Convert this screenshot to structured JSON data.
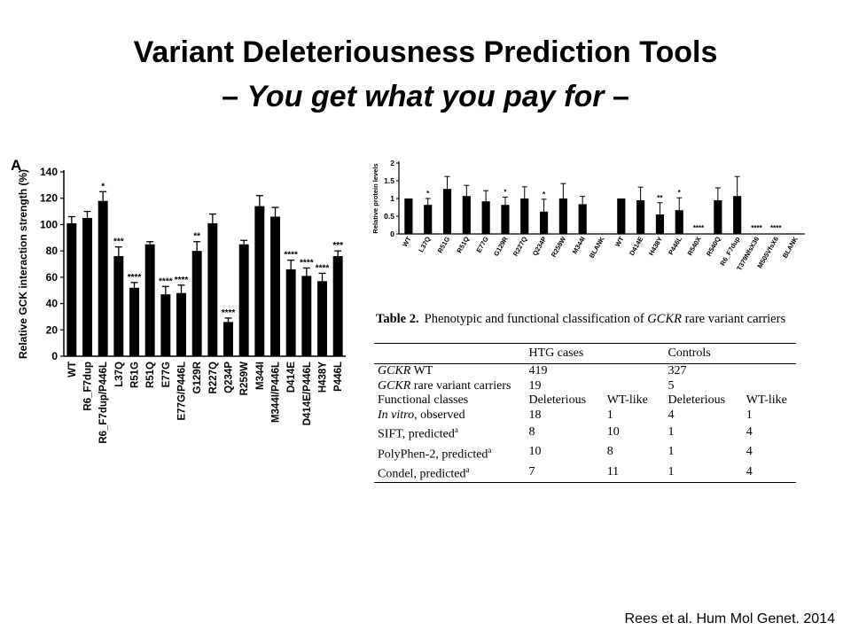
{
  "slide": {
    "title_line1": "Variant Deleteriousness Prediction Tools",
    "title_line2_prefix": "– ",
    "title_line2_italic": "You get what you pay for",
    "title_line2_suffix": " –",
    "citation": "Rees et al. Hum Mol Genet. 2014"
  },
  "chart_data": [
    {
      "type": "bar",
      "panel_label": "A",
      "ylabel": "Relative GCK  interaction strength (%)",
      "ylim": [
        0,
        140
      ],
      "yticks": [
        0,
        20,
        40,
        60,
        80,
        100,
        120,
        140
      ],
      "categories": [
        "WT",
        "R6_F7dup",
        "R6_F7dup/P446L",
        "L37Q",
        "R51G",
        "R51Q",
        "E77G",
        "E77G/P446L",
        "G129R",
        "R227Q",
        "Q234P",
        "R259W",
        "M344I",
        "M344I/P446L",
        "D414E",
        "D414E/P446L",
        "H438Y",
        "P446L"
      ],
      "values": [
        101,
        105,
        118,
        76,
        52,
        85,
        47,
        48,
        80,
        101,
        26,
        85,
        114,
        106,
        66,
        61,
        57,
        76
      ],
      "errors": [
        5,
        5,
        7,
        7,
        4,
        2,
        6,
        6,
        7,
        7,
        3,
        3,
        8,
        7,
        7,
        6,
        6,
        4
      ],
      "significance": [
        "",
        "",
        "*",
        "***",
        "****",
        "",
        "****",
        "****",
        "**",
        "",
        "****",
        "",
        "",
        "",
        "****",
        "****",
        "****",
        "***"
      ],
      "bar_color": "#000000",
      "grid": false
    },
    {
      "type": "bar",
      "ylabel": "Relative protein levels",
      "ylim": [
        0,
        2
      ],
      "yticks": [
        0,
        0.5,
        1,
        1.5,
        2
      ],
      "categories": [
        "WT",
        "L37Q",
        "R51G",
        "R51Q",
        "E77G",
        "G129R",
        "R227Q",
        "Q234P",
        "R259W",
        "M344I",
        "BLANK",
        "WT",
        "D414E",
        "H438Y",
        "P446L",
        "R540X",
        "R540Q",
        "R6_F7dup",
        "T379NfsX36",
        "M505VfsX6",
        "BLANK"
      ],
      "values": [
        1.0,
        0.82,
        1.27,
        1.07,
        0.92,
        0.82,
        1.0,
        0.63,
        1.0,
        0.84,
        0,
        1.0,
        0.95,
        0.55,
        0.67,
        0,
        0.95,
        1.07,
        0,
        0,
        0
      ],
      "errors": [
        0,
        0.18,
        0.35,
        0.3,
        0.3,
        0.22,
        0.33,
        0.35,
        0.42,
        0.22,
        0,
        0,
        0.37,
        0.33,
        0.35,
        0,
        0.35,
        0.55,
        0,
        0,
        0
      ],
      "significance": [
        "",
        "*",
        "",
        "",
        "",
        "*",
        "",
        "*",
        "",
        "",
        "",
        "",
        "",
        "**",
        "*",
        "****",
        "",
        "",
        "****",
        "****",
        ""
      ],
      "bar_color": "#000000",
      "grid": false
    }
  ],
  "table": {
    "caption_label": "Table 2.",
    "caption_pre": "Phenotypic and functional classification of ",
    "caption_gene": "GCKR",
    "caption_post": " rare variant carriers",
    "group_htg": "HTG cases",
    "group_controls": "Controls",
    "rows": [
      {
        "gene": "GCKR",
        "label": " WT",
        "v": [
          "419",
          "",
          "327",
          ""
        ]
      },
      {
        "gene": "GCKR",
        "label": " rare variant carriers",
        "v": [
          "19",
          "",
          "5",
          ""
        ]
      },
      {
        "gene": "",
        "label": "Functional classes",
        "v": [
          "Deleterious",
          "WT-like",
          "Deleterious",
          "WT-like"
        ]
      },
      {
        "italic_label": "In vitro",
        "label": ", observed",
        "v": [
          "18",
          "1",
          "4",
          "1"
        ]
      },
      {
        "gene": "",
        "label": "SIFT, predicted",
        "sup": "a",
        "v": [
          "8",
          "10",
          "1",
          "4"
        ]
      },
      {
        "gene": "",
        "label": "PolyPhen-2, predicted",
        "sup": "a",
        "v": [
          "10",
          "8",
          "1",
          "4"
        ]
      },
      {
        "gene": "",
        "label": "Condel, predicted",
        "sup": "a",
        "v": [
          "7",
          "11",
          "1",
          "4"
        ]
      }
    ]
  }
}
